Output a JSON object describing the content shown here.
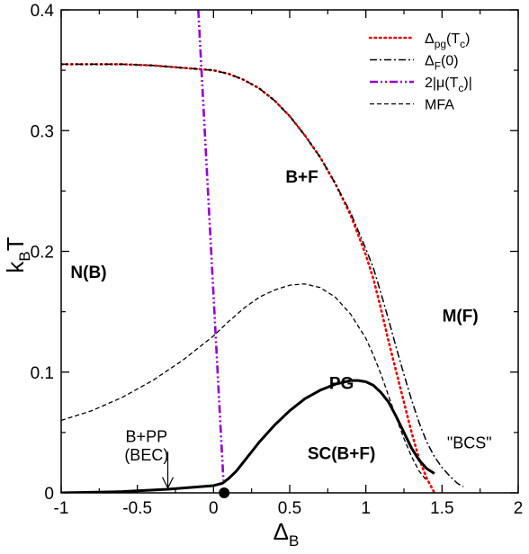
{
  "chart_data": {
    "type": "line",
    "xlabel": {
      "main": "Δ",
      "sub": "B"
    },
    "ylabel": {
      "main": "k",
      "sub": "B",
      "tail": "T"
    },
    "xlim": [
      -1,
      2
    ],
    "ylim": [
      0,
      0.4
    ],
    "xticks": [
      -1,
      -0.5,
      0,
      0.5,
      1,
      1.5,
      2
    ],
    "xtick_labels": [
      "-1",
      "-0.5",
      "0",
      "0.5",
      "1",
      "1.5",
      "2"
    ],
    "yticks": [
      0,
      0.1,
      0.2,
      0.3,
      0.4
    ],
    "ytick_labels": [
      "0",
      "0.1",
      "0.2",
      "0.3",
      "0.4"
    ],
    "grid": false,
    "legend_position": "top-right",
    "series": [
      {
        "name": "Δpg(Tc)",
        "legend_parts": [
          {
            "t": "Δ"
          },
          {
            "t": "pg",
            "sub": true
          },
          {
            "t": "(T"
          },
          {
            "t": "c",
            "sub": true
          },
          {
            "t": ")"
          }
        ],
        "color": "#ee0000",
        "style": "dotted",
        "x": [
          -1.0,
          -0.8,
          -0.6,
          -0.4,
          -0.2,
          0.0,
          0.1,
          0.2,
          0.3,
          0.4,
          0.5,
          0.6,
          0.7,
          0.8,
          0.9,
          1.0,
          1.05,
          1.1,
          1.15,
          1.2,
          1.25,
          1.3,
          1.35,
          1.4,
          1.45
        ],
        "y": [
          0.355,
          0.355,
          0.355,
          0.354,
          0.352,
          0.35,
          0.347,
          0.342,
          0.335,
          0.325,
          0.312,
          0.296,
          0.278,
          0.256,
          0.23,
          0.197,
          0.177,
          0.152,
          0.125,
          0.1,
          0.075,
          0.05,
          0.028,
          0.012,
          0.0
        ]
      },
      {
        "name": "ΔF(0)",
        "legend_parts": [
          {
            "t": "Δ"
          },
          {
            "t": "F",
            "sub": true
          },
          {
            "t": "(0)"
          }
        ],
        "color": "#000000",
        "style": "dashdot",
        "x": [
          -1.0,
          -0.8,
          -0.6,
          -0.4,
          -0.2,
          0.0,
          0.1,
          0.2,
          0.3,
          0.4,
          0.5,
          0.6,
          0.7,
          0.8,
          0.9,
          1.0,
          1.05,
          1.1,
          1.15,
          1.2,
          1.25,
          1.3,
          1.35,
          1.4,
          1.45,
          1.5,
          1.55,
          1.6,
          1.64
        ],
        "y": [
          0.355,
          0.355,
          0.355,
          0.354,
          0.352,
          0.35,
          0.347,
          0.342,
          0.335,
          0.325,
          0.312,
          0.296,
          0.278,
          0.256,
          0.232,
          0.202,
          0.186,
          0.165,
          0.143,
          0.12,
          0.098,
          0.077,
          0.058,
          0.042,
          0.03,
          0.021,
          0.014,
          0.008,
          0.005
        ]
      },
      {
        "name": "2|μ(Tc)|",
        "legend_parts": [
          {
            "t": "2|μ(T"
          },
          {
            "t": "c",
            "sub": true
          },
          {
            "t": ")|"
          }
        ],
        "color": "#9400d3",
        "style": "dashdotdot",
        "x": [
          -0.1,
          0.065
        ],
        "y": [
          0.4,
          0.01
        ]
      },
      {
        "name": "MFA",
        "legend_parts": [
          {
            "t": "MFA"
          }
        ],
        "color": "#000000",
        "style": "dashed",
        "x": [
          -1.0,
          -0.8,
          -0.6,
          -0.4,
          -0.2,
          0.0,
          0.1,
          0.2,
          0.3,
          0.4,
          0.5,
          0.6,
          0.7,
          0.8,
          0.9,
          1.0,
          1.05,
          1.1,
          1.15,
          1.2,
          1.25,
          1.3,
          1.35,
          1.4
        ],
        "y": [
          0.06,
          0.068,
          0.079,
          0.093,
          0.11,
          0.13,
          0.142,
          0.153,
          0.162,
          0.168,
          0.172,
          0.173,
          0.17,
          0.162,
          0.148,
          0.128,
          0.114,
          0.098,
          0.08,
          0.062,
          0.045,
          0.03,
          0.018,
          0.01
        ]
      },
      {
        "name": "",
        "legend_parts": [],
        "color": "#000000",
        "style": "solid",
        "x": [
          -1.0,
          -0.6,
          -0.3,
          0.0,
          0.06,
          0.1,
          0.15,
          0.2,
          0.3,
          0.4,
          0.5,
          0.6,
          0.7,
          0.8,
          0.9,
          0.95,
          1.0,
          1.05,
          1.1,
          1.15,
          1.2,
          1.25,
          1.3,
          1.35,
          1.4,
          1.45
        ],
        "y": [
          0.0,
          0.001,
          0.003,
          0.006,
          0.008,
          0.012,
          0.018,
          0.026,
          0.042,
          0.056,
          0.068,
          0.078,
          0.085,
          0.09,
          0.093,
          0.093,
          0.092,
          0.089,
          0.083,
          0.075,
          0.063,
          0.05,
          0.037,
          0.027,
          0.02,
          0.016
        ]
      }
    ],
    "marker": {
      "x": 0.07,
      "y": 0.0
    },
    "annotations": [
      {
        "text": "N(B)",
        "x": -0.82,
        "y": 0.178,
        "bold": true
      },
      {
        "text": "B+F",
        "x": 0.58,
        "y": 0.257,
        "bold": true
      },
      {
        "text": "M(F)",
        "x": 1.62,
        "y": 0.142,
        "bold": true
      },
      {
        "text": "PG",
        "x": 0.84,
        "y": 0.086,
        "bold": true
      },
      {
        "text": "SC(B+F)",
        "x": 0.84,
        "y": 0.028,
        "bold": true
      },
      {
        "text": "\"BCS\"",
        "x": 1.68,
        "y": 0.037,
        "bold": false
      },
      {
        "text": "B+PP",
        "x": -0.44,
        "y": 0.042,
        "bold": false
      },
      {
        "text": "(BEC)",
        "x": -0.44,
        "y": 0.027,
        "bold": false
      }
    ],
    "arrow": {
      "x": -0.3,
      "y_from": 0.034,
      "y_to": 0.004
    }
  }
}
